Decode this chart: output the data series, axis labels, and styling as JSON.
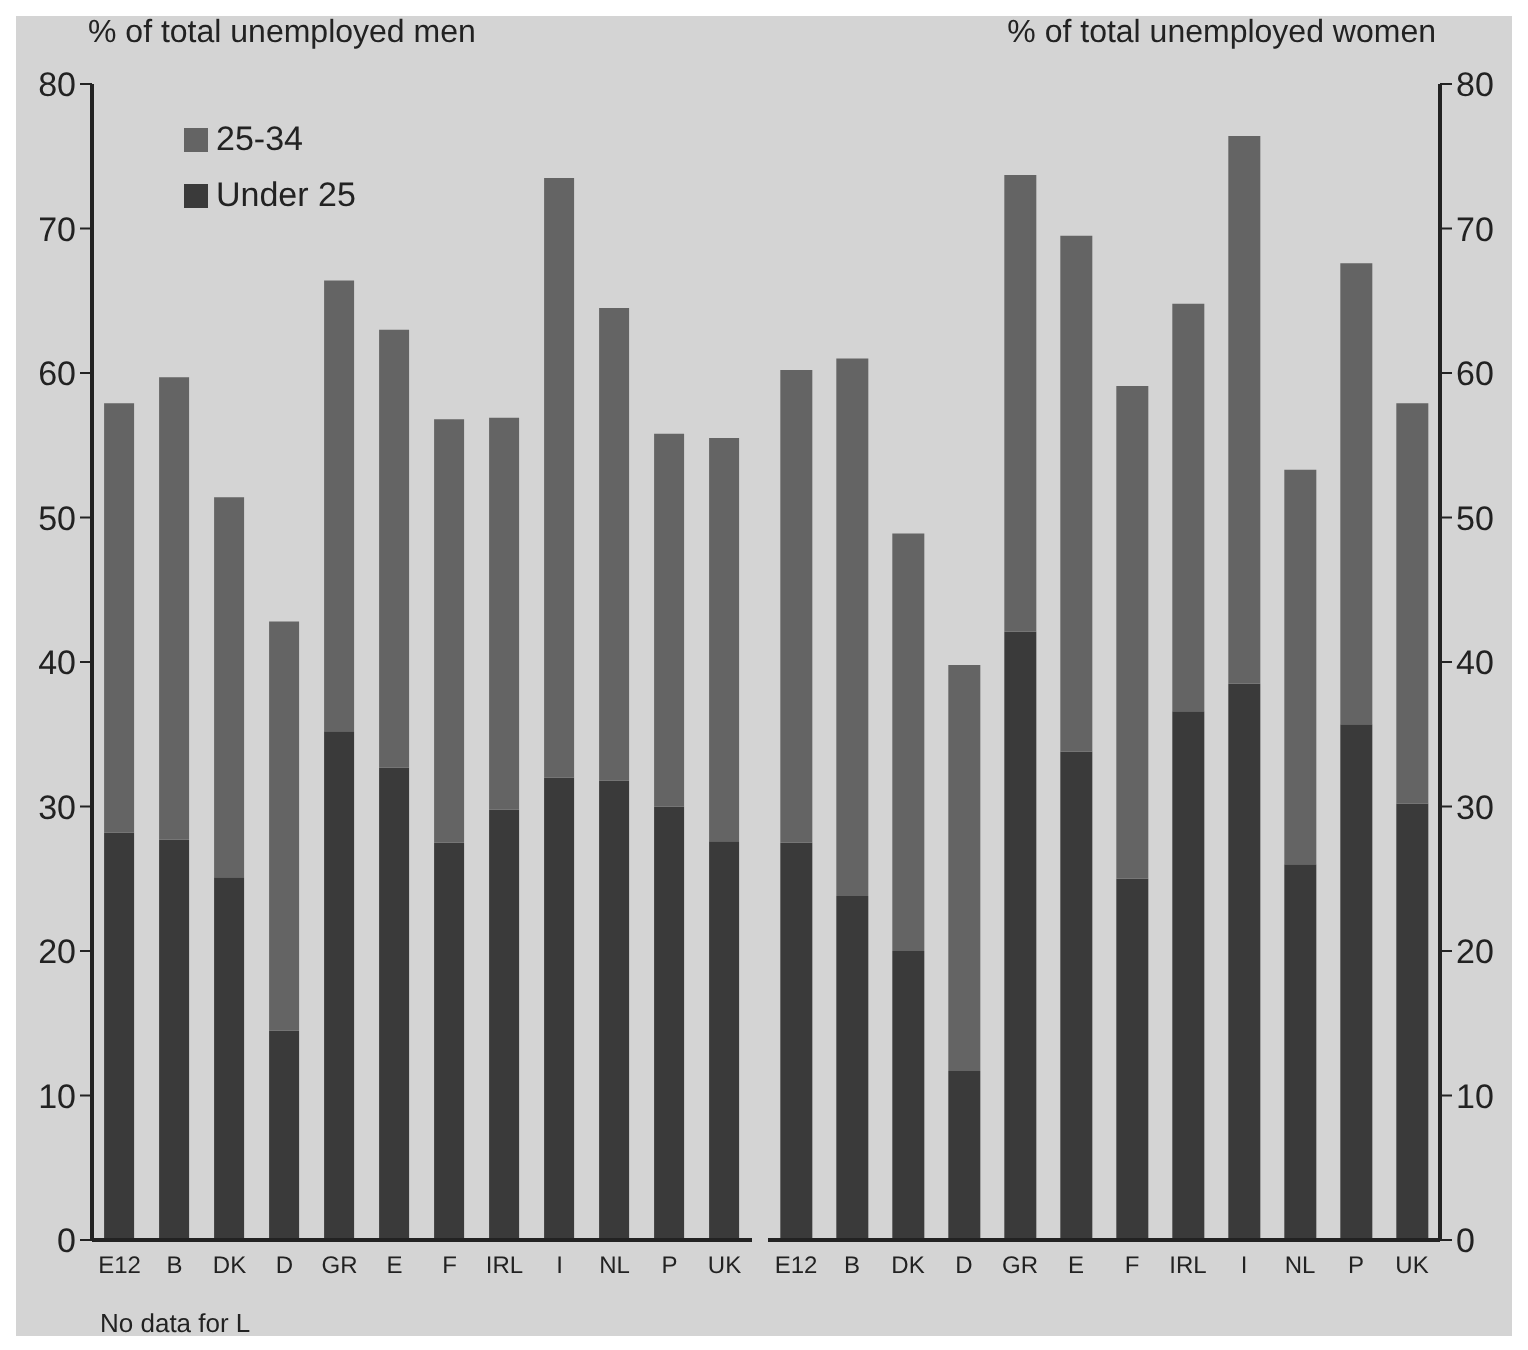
{
  "chart_data": [
    {
      "type": "bar",
      "title": "% of total unemployed men",
      "stacked": true,
      "legend": "top left",
      "categories": [
        "E12",
        "B",
        "DK",
        "D",
        "GR",
        "E",
        "F",
        "IRL",
        "I",
        "NL",
        "P",
        "UK"
      ],
      "series": [
        {
          "name": "Under 25",
          "color": "#3a3a3a",
          "values": [
            28.2,
            27.7,
            25.1,
            14.5,
            35.2,
            32.7,
            27.5,
            29.8,
            32,
            31.8,
            30,
            27.6
          ]
        },
        {
          "name": "25-34",
          "color": "#646464",
          "values": [
            29.7,
            32,
            26.3,
            28.3,
            31.2,
            30.3,
            29.3,
            27.1,
            41.5,
            32.7,
            25.8,
            27.9
          ]
        }
      ],
      "ylim": [
        0,
        80
      ],
      "yticks": [
        0,
        10,
        20,
        30,
        40,
        50,
        60,
        70,
        80
      ],
      "annotations": [
        "No data for L"
      ]
    },
    {
      "type": "bar",
      "title": "% of total unemployed women",
      "stacked": true,
      "categories": [
        "E12",
        "B",
        "DK",
        "D",
        "GR",
        "E",
        "F",
        "IRL",
        "I",
        "NL",
        "P",
        "UK"
      ],
      "series": [
        {
          "color": "#3a3a3a",
          "values": [
            27.5,
            23.8,
            20,
            11.7,
            42.1,
            33.8,
            25,
            36.6,
            38.5,
            26,
            35.7,
            30.2
          ]
        },
        {
          "color": "#646464",
          "values": [
            32.7,
            37.2,
            28.9,
            28.1,
            31.6,
            35.7,
            34.1,
            28.2,
            37.9,
            27.3,
            31.9,
            27.7
          ]
        }
      ],
      "ylim": [
        0,
        80
      ],
      "yticks": [
        0,
        10,
        20,
        30,
        40,
        50,
        60,
        70,
        80
      ]
    }
  ]
}
